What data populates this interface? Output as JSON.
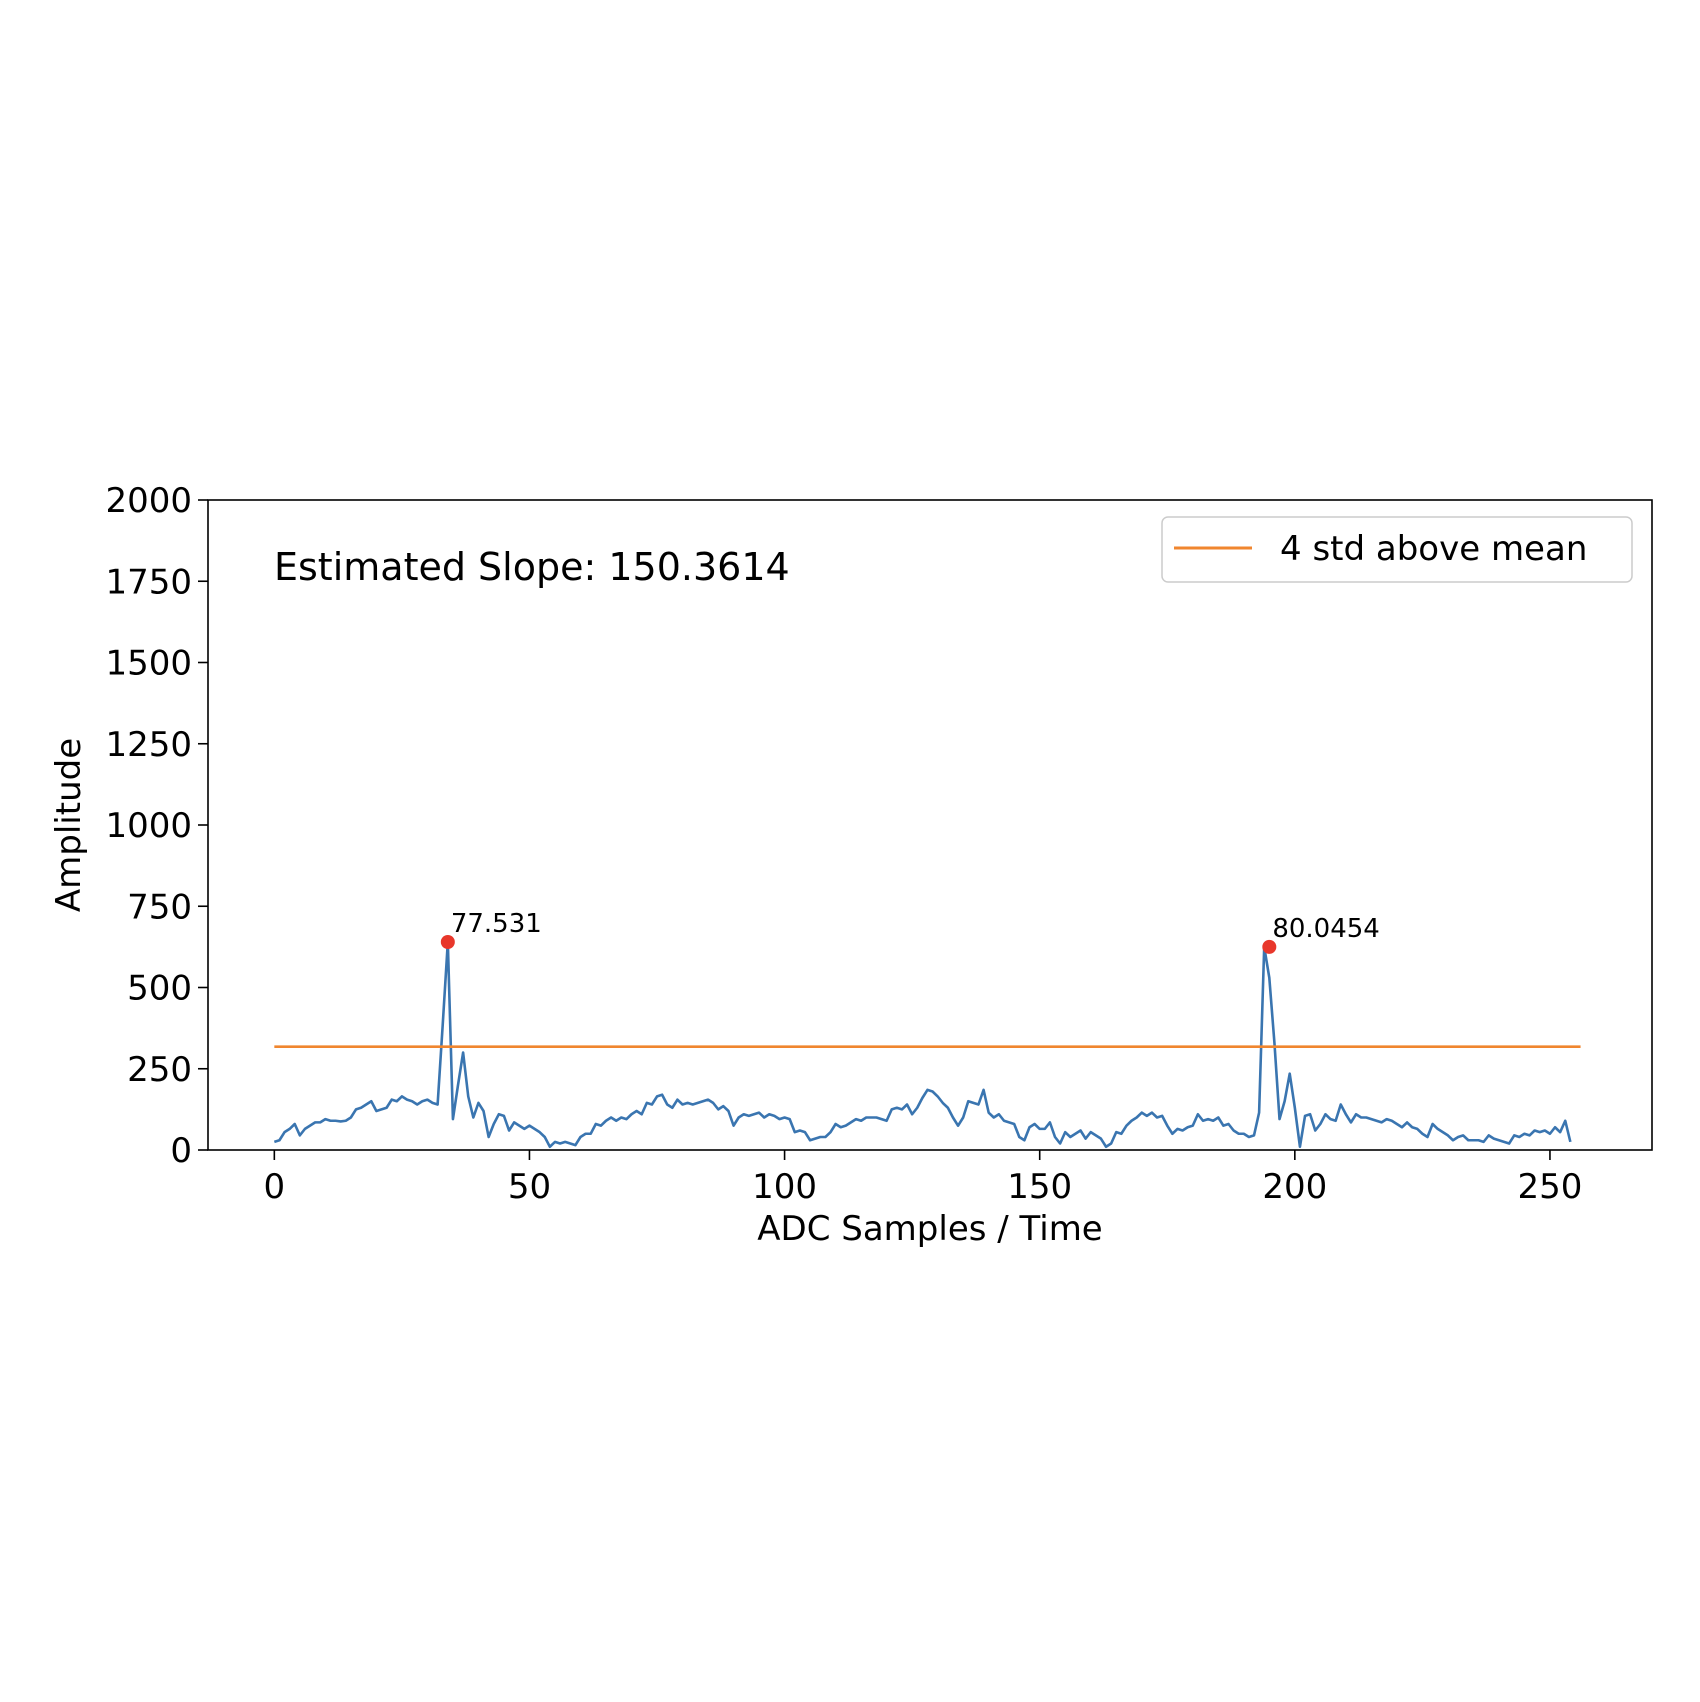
{
  "chart_data": {
    "type": "line",
    "title": "",
    "xlabel": "ADC Samples / Time",
    "ylabel": "Amplitude",
    "xlim": [
      -13,
      270
    ],
    "ylim": [
      0,
      2000
    ],
    "xticks": [
      0,
      50,
      100,
      150,
      200,
      250
    ],
    "yticks": [
      0,
      250,
      500,
      750,
      1000,
      1250,
      1500,
      1750,
      2000
    ],
    "grid": false,
    "legend_position": "top-right",
    "annotation": "Estimated Slope: 150.3614",
    "series": [
      {
        "name": "",
        "color": "#3a75b0",
        "x_start": 0,
        "x_step": 1,
        "values": [
          25,
          30,
          55,
          65,
          80,
          45,
          65,
          75,
          85,
          85,
          95,
          90,
          90,
          88,
          90,
          100,
          125,
          130,
          140,
          150,
          120,
          125,
          130,
          155,
          150,
          165,
          155,
          150,
          140,
          150,
          155,
          145,
          140,
          385,
          640,
          95,
          200,
          300,
          165,
          100,
          145,
          120,
          40,
          80,
          110,
          105,
          60,
          85,
          75,
          65,
          75,
          65,
          55,
          40,
          10,
          25,
          20,
          25,
          20,
          15,
          40,
          50,
          50,
          80,
          75,
          90,
          100,
          90,
          100,
          95,
          110,
          120,
          110,
          145,
          140,
          165,
          170,
          140,
          130,
          155,
          140,
          145,
          140,
          145,
          150,
          155,
          145,
          125,
          135,
          120,
          75,
          100,
          110,
          105,
          110,
          115,
          100,
          110,
          105,
          95,
          100,
          95,
          55,
          60,
          55,
          30,
          35,
          40,
          40,
          55,
          80,
          70,
          75,
          85,
          95,
          90,
          100,
          100,
          100,
          95,
          90,
          125,
          130,
          125,
          140,
          110,
          130,
          160,
          185,
          180,
          165,
          145,
          130,
          100,
          75,
          100,
          150,
          145,
          140,
          185,
          115,
          100,
          110,
          90,
          85,
          80,
          40,
          30,
          70,
          80,
          65,
          65,
          85,
          40,
          20,
          55,
          40,
          50,
          60,
          35,
          55,
          45,
          35,
          10,
          20,
          55,
          50,
          75,
          90,
          100,
          115,
          105,
          115,
          100,
          105,
          75,
          50,
          65,
          60,
          70,
          75,
          110,
          90,
          95,
          90,
          100,
          75,
          80,
          60,
          50,
          50,
          40,
          45,
          115,
          625,
          530,
          330,
          95,
          150,
          235,
          130,
          10,
          105,
          110,
          60,
          80,
          110,
          95,
          90,
          140,
          110,
          85,
          110,
          100,
          100,
          95,
          90,
          85,
          95,
          90,
          80,
          70,
          85,
          70,
          65,
          50,
          40,
          80,
          65,
          55,
          45,
          30,
          40,
          45,
          30,
          30,
          30,
          25,
          45,
          35,
          30,
          25,
          20,
          45,
          40,
          50,
          45,
          60,
          55,
          60,
          50,
          70,
          55,
          90,
          25
        ],
        "peaks": [
          {
            "x": 34,
            "y": 640,
            "label": "77.531"
          },
          {
            "x": 195,
            "y": 625,
            "label": "80.0454"
          }
        ]
      },
      {
        "name": "4 std above mean",
        "color": "#f0862f",
        "x": [
          0,
          256
        ],
        "values": [
          318,
          318
        ]
      }
    ],
    "peak_marker_color": "#e8372b"
  }
}
